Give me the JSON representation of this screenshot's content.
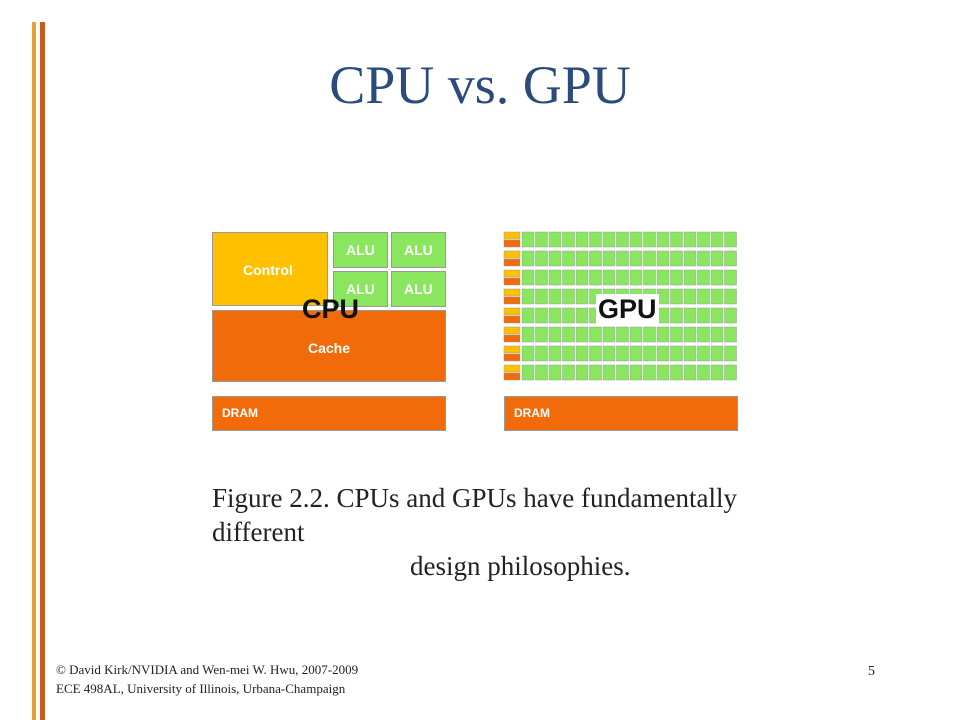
{
  "slide": {
    "title": "CPU vs. GPU",
    "caption_line1": "Figure 2.2. CPUs and GPUs have fundamentally different",
    "caption_line2": "design philosophies.",
    "footer_line1": "© David Kirk/NVIDIA and Wen-mei W. Hwu, 2007-2009",
    "footer_line2": "ECE 498AL, University of Illinois, Urbana-Champaign",
    "page_number": "5"
  },
  "cpu": {
    "label": "CPU",
    "control_label": "Control",
    "alu_labels": [
      "ALU",
      "ALU",
      "ALU",
      "ALU"
    ],
    "cache_label": "Cache",
    "dram_label": "DRAM"
  },
  "gpu": {
    "label": "GPU",
    "dram_label": "DRAM"
  },
  "colors": {
    "control": "#ffc000",
    "alu": "#8ae65e",
    "cache": "#f26b0a",
    "dram": "#f26b0a",
    "title": "#2a4b7c"
  }
}
